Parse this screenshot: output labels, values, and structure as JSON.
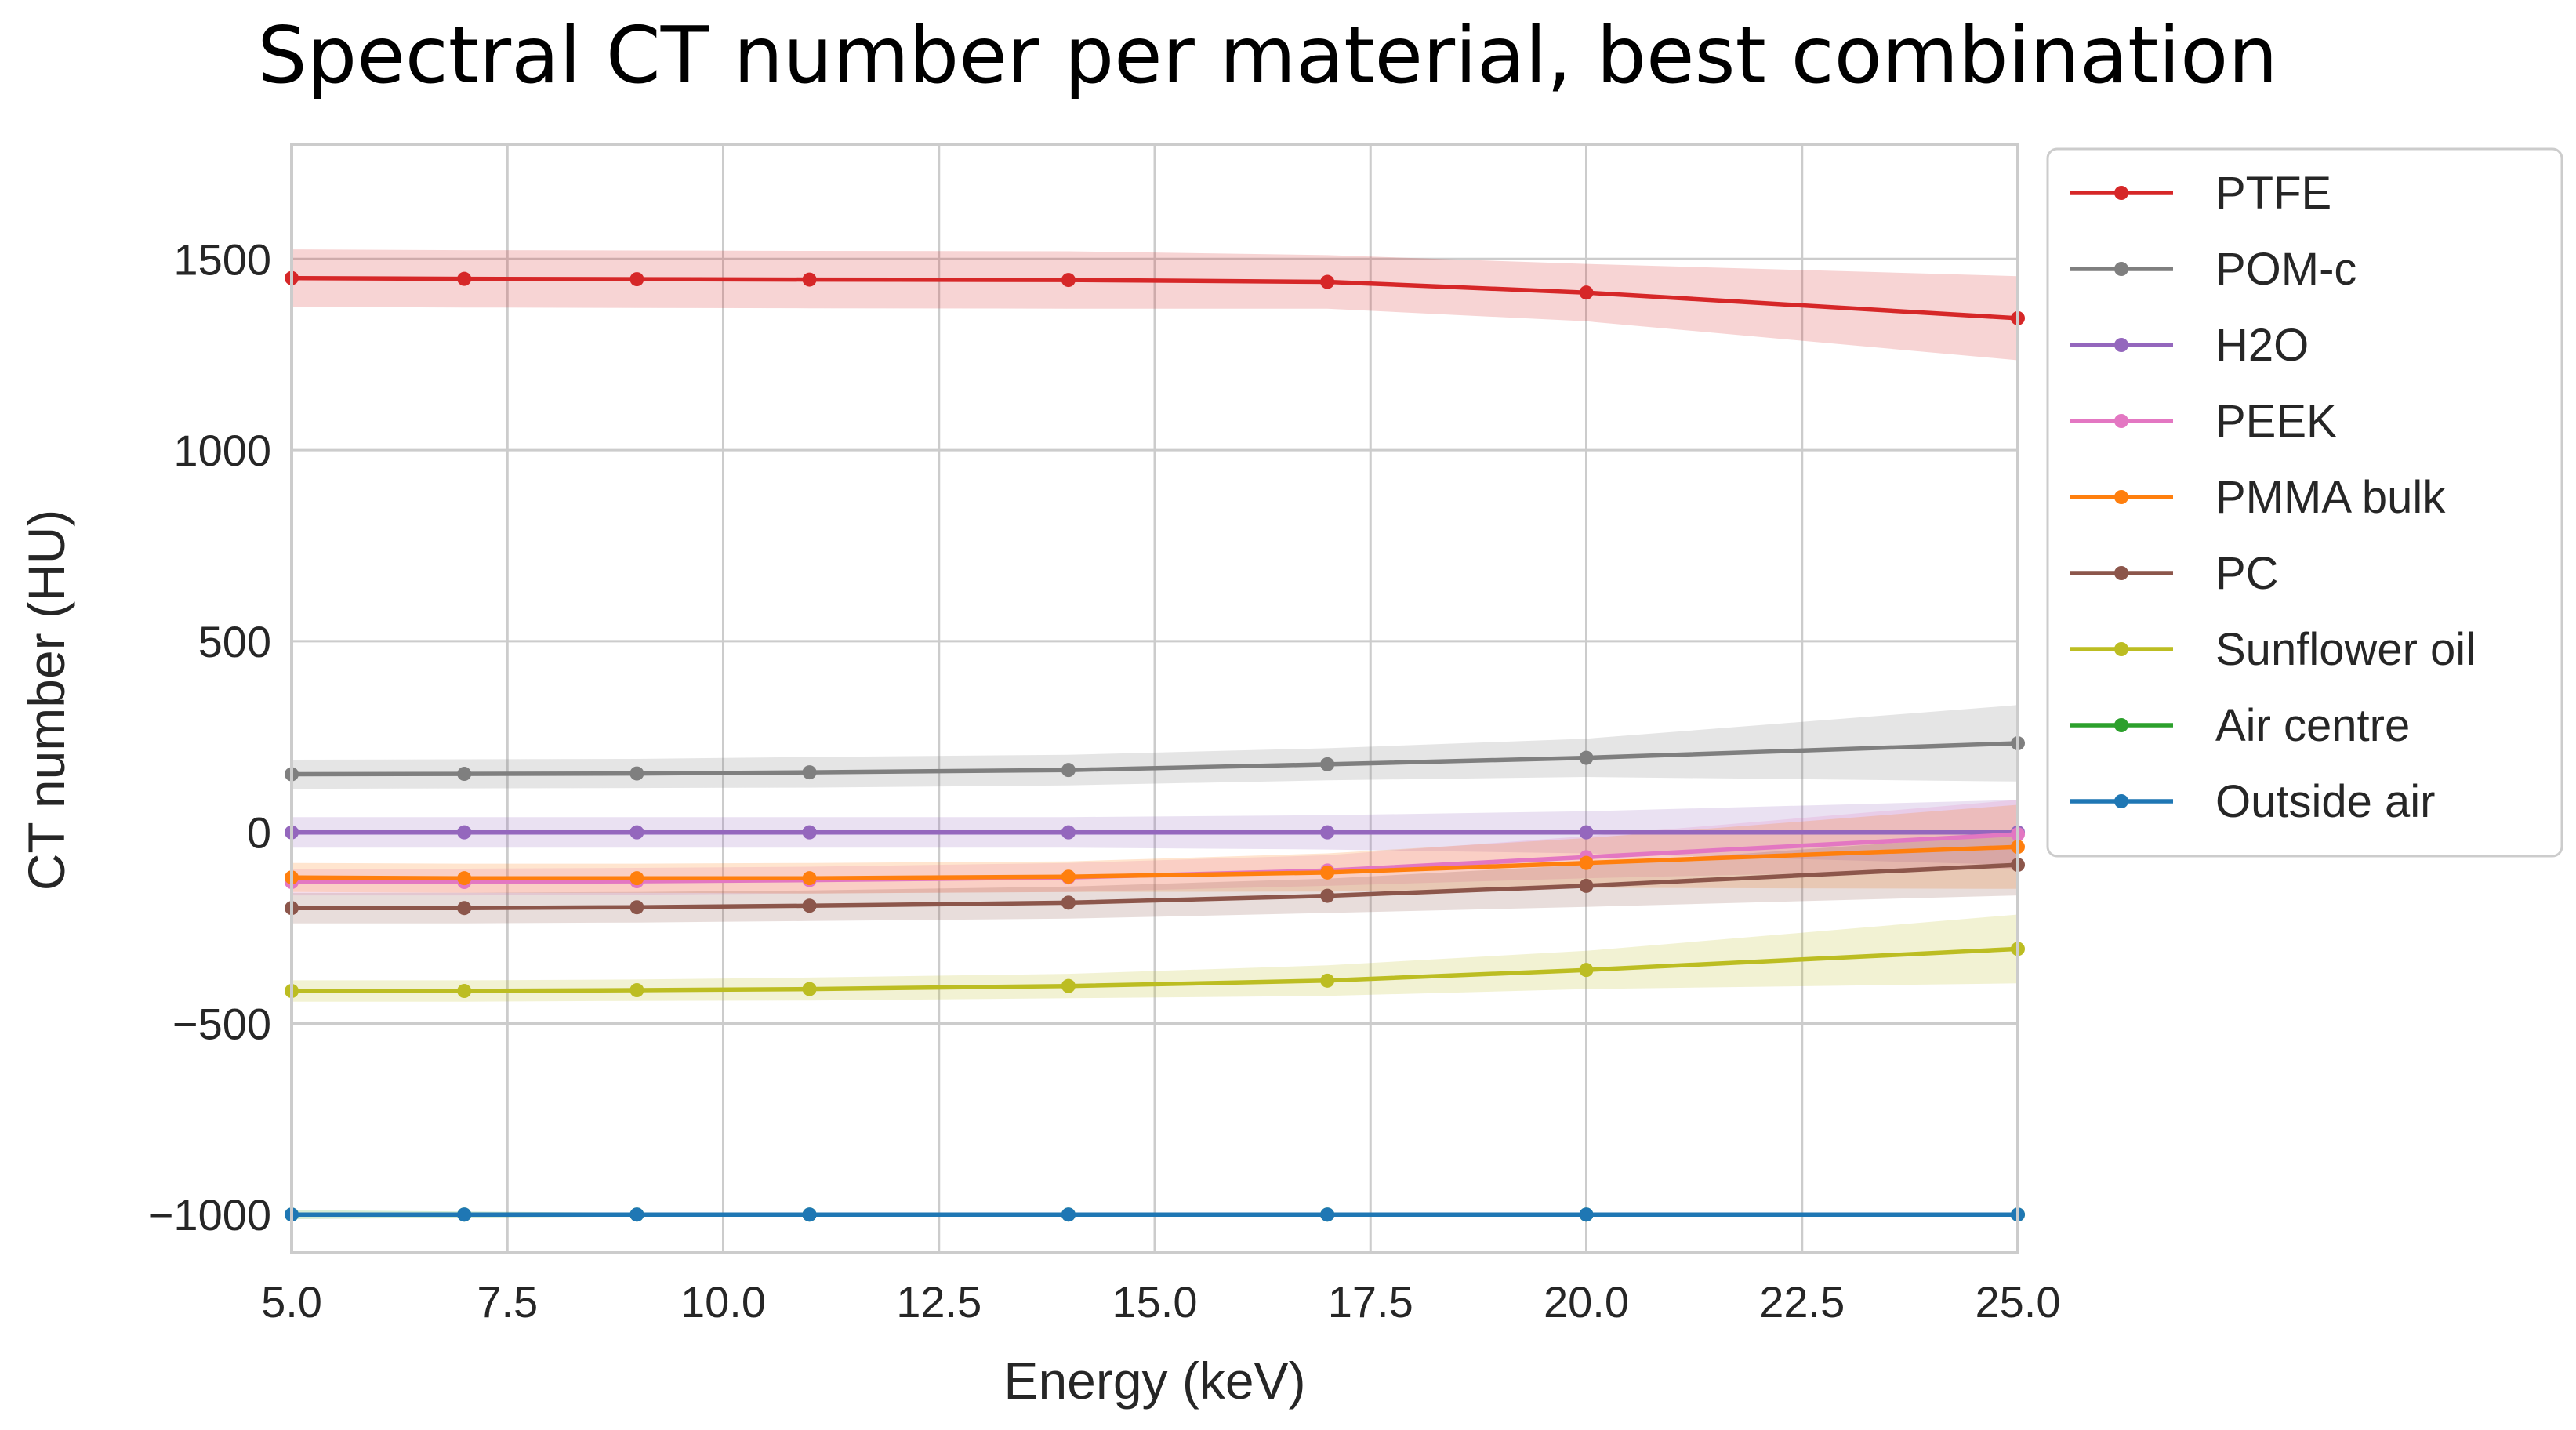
{
  "chart_data": {
    "type": "line",
    "title": "Spectral CT number per material, best combination",
    "xlabel": "Energy (keV)",
    "ylabel": "CT number (HU)",
    "xlim": [
      5.0,
      25.0
    ],
    "ylim": [
      -1100,
      1800
    ],
    "xticks": [
      5.0,
      7.5,
      10.0,
      12.5,
      15.0,
      17.5,
      20.0,
      22.5,
      25.0
    ],
    "xtick_labels": [
      "5.0",
      "7.5",
      "10.0",
      "12.5",
      "15.0",
      "17.5",
      "20.0",
      "22.5",
      "25.0"
    ],
    "yticks": [
      -1000,
      -500,
      0,
      500,
      1000,
      1500
    ],
    "ytick_labels": [
      "−1000",
      "−500",
      "0",
      "500",
      "1000",
      "1500"
    ],
    "grid": true,
    "legend_position": "outside right, top",
    "x": [
      5,
      7,
      9,
      11,
      14,
      17,
      20,
      25
    ],
    "series": [
      {
        "name": "PTFE",
        "color": "#d62728",
        "values": [
          1450,
          1448,
          1447,
          1446,
          1445,
          1440,
          1412,
          1345
        ],
        "band": [
          75,
          75,
          75,
          75,
          75,
          70,
          75,
          110
        ]
      },
      {
        "name": "POM-c",
        "color": "#7f7f7f",
        "values": [
          152,
          153,
          154,
          157,
          163,
          178,
          195,
          233
        ],
        "band": [
          38,
          38,
          38,
          40,
          40,
          42,
          50,
          100
        ]
      },
      {
        "name": "H2O",
        "color": "#9467bd",
        "values": [
          0,
          0,
          0,
          0,
          0,
          0,
          0,
          0
        ],
        "band": [
          40,
          40,
          40,
          40,
          40,
          45,
          55,
          85
        ]
      },
      {
        "name": "PEEK",
        "color": "#e377c2",
        "values": [
          -130,
          -130,
          -128,
          -125,
          -118,
          -100,
          -65,
          -5
        ],
        "band": [
          35,
          35,
          35,
          35,
          38,
          40,
          55,
          90
        ]
      },
      {
        "name": "PMMA bulk",
        "color": "#ff7f0e",
        "values": [
          -118,
          -120,
          -120,
          -120,
          -116,
          -105,
          -80,
          -38
        ],
        "band": [
          38,
          38,
          38,
          40,
          40,
          50,
          65,
          110
        ]
      },
      {
        "name": "PC",
        "color": "#8c564b",
        "values": [
          -198,
          -198,
          -196,
          -192,
          -184,
          -166,
          -140,
          -85
        ],
        "band": [
          40,
          40,
          40,
          40,
          42,
          45,
          55,
          80
        ]
      },
      {
        "name": "Sunflower oil",
        "color": "#bcbd22",
        "values": [
          -415,
          -415,
          -413,
          -410,
          -402,
          -388,
          -360,
          -305
        ],
        "band": [
          28,
          28,
          28,
          30,
          32,
          40,
          50,
          90
        ]
      },
      {
        "name": "Air centre",
        "color": "#2ca02c",
        "values": [
          -1000,
          -1000,
          -1000,
          -1000,
          -1000,
          -1000,
          -1000,
          -1000
        ],
        "band": [
          12,
          8,
          5,
          4,
          3,
          3,
          3,
          3
        ]
      },
      {
        "name": "Outside air",
        "color": "#1f77b4",
        "values": [
          -1000,
          -1000,
          -1000,
          -1000,
          -1000,
          -1000,
          -1000,
          -1000
        ],
        "band": [
          2,
          2,
          2,
          2,
          2,
          2,
          2,
          2
        ]
      }
    ]
  }
}
